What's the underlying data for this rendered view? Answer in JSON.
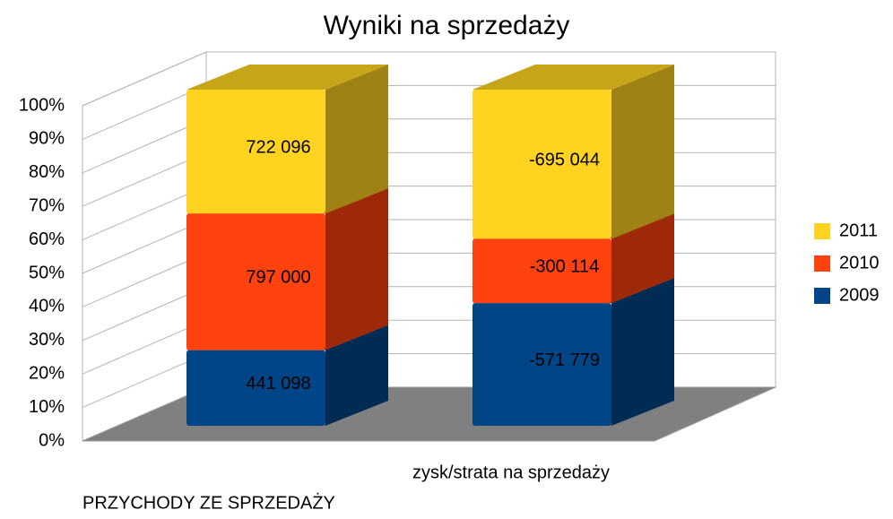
{
  "chart_data": {
    "type": "bar3d_percent_stacked",
    "title": "Wyniki na sprzedaży",
    "categories": [
      "PRZYCHODY ZE SPRZEDAŻY",
      "zysk/strata na sprzedaży"
    ],
    "series": [
      {
        "name": "2009",
        "color": "#004586",
        "values": [
          441098,
          -571779
        ],
        "value_labels": [
          "441 098",
          "-571 779"
        ]
      },
      {
        "name": "2010",
        "color": "#ff420e",
        "values": [
          797000,
          -300114
        ],
        "value_labels": [
          "797 000",
          "-300 114"
        ]
      },
      {
        "name": "2011",
        "color": "#ffd320",
        "values": [
          722096,
          -695044
        ],
        "value_labels": [
          "722 096",
          "-695 044"
        ]
      }
    ],
    "ylim": [
      0,
      100
    ],
    "yticks": [
      {
        "value": 0,
        "label": "0%"
      },
      {
        "value": 10,
        "label": "10%"
      },
      {
        "value": 20,
        "label": "20%"
      },
      {
        "value": 30,
        "label": "30%"
      },
      {
        "value": 40,
        "label": "40%"
      },
      {
        "value": 50,
        "label": "50%"
      },
      {
        "value": 60,
        "label": "60%"
      },
      {
        "value": 70,
        "label": "70%"
      },
      {
        "value": 80,
        "label": "80%"
      },
      {
        "value": 90,
        "label": "90%"
      },
      {
        "value": 100,
        "label": "100%"
      }
    ],
    "grid": true,
    "legend": "right"
  }
}
